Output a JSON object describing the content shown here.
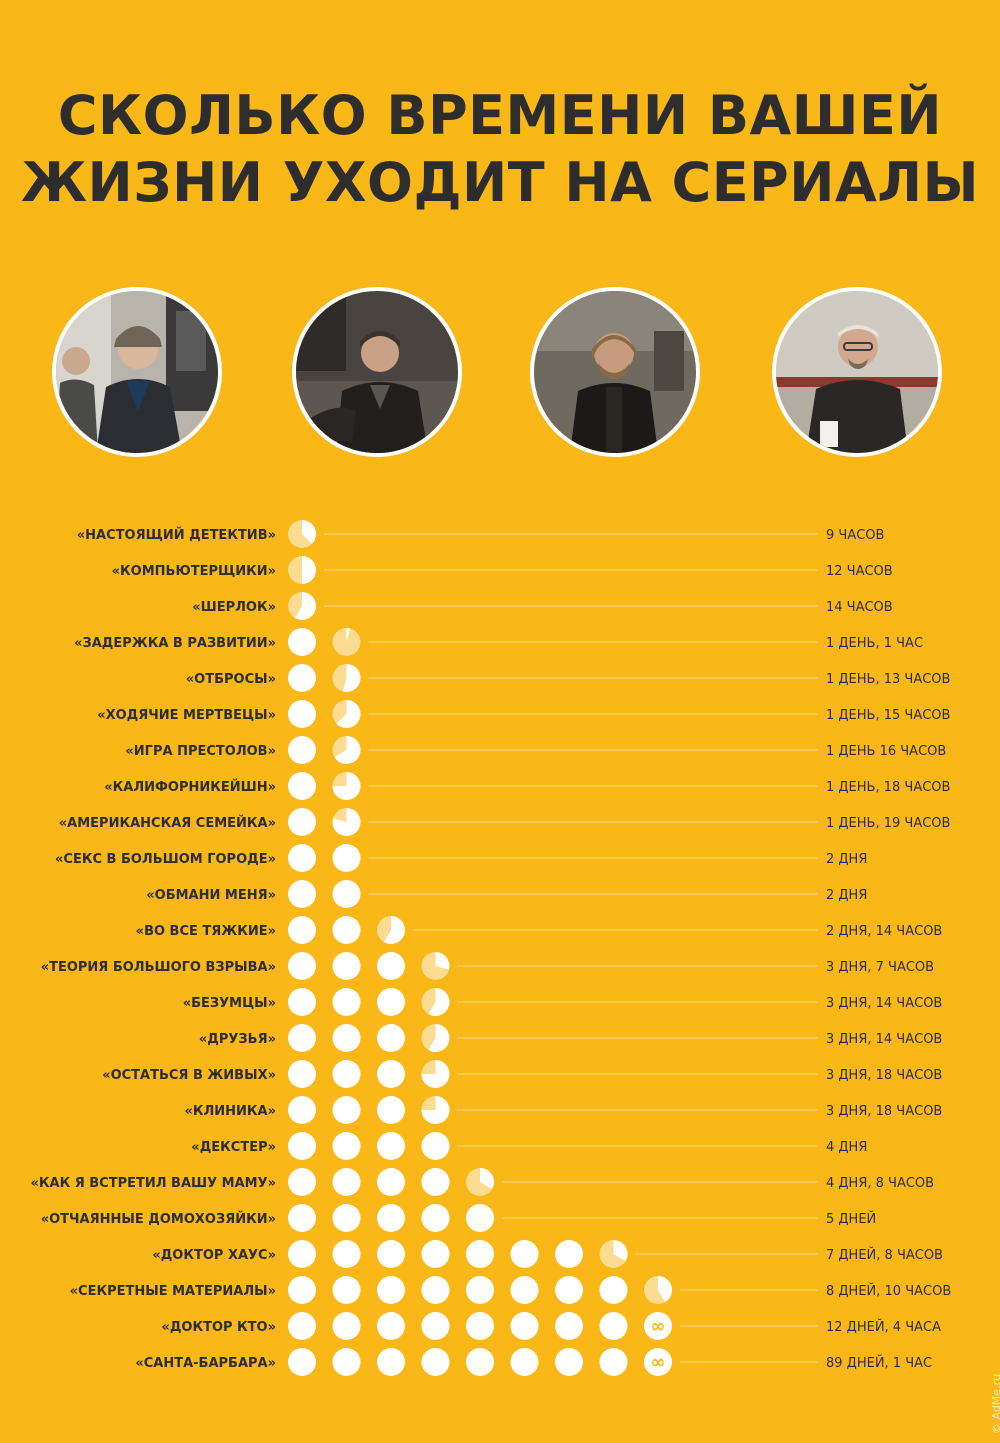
{
  "title": {
    "line1": "СКОЛЬКО ВРЕМЕНИ ВАШЕЙ",
    "line2": "ЖИЗНИ УХОДИТ НА СЕРИАЛЫ"
  },
  "watermark": "© AdMe.ru",
  "portraits": [
    {
      "name": "sherlock-portrait"
    },
    {
      "name": "house-portrait"
    },
    {
      "name": "tyrion-portrait"
    },
    {
      "name": "walter-portrait"
    }
  ],
  "colors": {
    "background": "#f9b818",
    "dot": "#ffffff",
    "partial_fill": "#fbdc90",
    "text": "#2d2d2d"
  },
  "chart_data": {
    "type": "bar",
    "unit_note": "each circle = 1 day; partial circle = fraction of a day",
    "categories": [
      "«НАСТОЯЩИЙ ДЕТЕКТИВ»",
      "«КОМПЬЮТЕРЩИКИ»",
      "«ШЕРЛОК»",
      "«ЗАДЕРЖКА В РАЗВИТИИ»",
      "«ОТБРОСЫ»",
      "«ХОДЯЧИЕ МЕРТВЕЦЫ»",
      "«ИГРА ПРЕСТОЛОВ»",
      "«КАЛИФОРНИКЕЙШН»",
      "«АМЕРИКАНСКАЯ СЕМЕЙКА»",
      "«СЕКС В БОЛЬШОМ ГОРОДЕ»",
      "«ОБМАНИ МЕНЯ»",
      "«ВО ВСЕ ТЯЖКИЕ»",
      "«ТЕОРИЯ БОЛЬШОГО ВЗРЫВА»",
      "«БЕЗУМЦЫ»",
      "«ДРУЗЬЯ»",
      "«ОСТАТЬСЯ В ЖИВЫХ»",
      "«КЛИНИКА»",
      "«ДЕКСТЕР»",
      "«КАК Я ВСТРЕТИЛ ВАШУ МАМУ»",
      "«ОТЧАЯННЫЕ ДОМОХОЗЯЙКИ»",
      "«ДОКТОР ХАУС»",
      "«СЕКРЕТНЫЕ МАТЕРИАЛЫ»",
      "«ДОКТОР КТО»",
      "«САНТА-БАРБАРА»"
    ],
    "value_labels": [
      "9 ЧАСОВ",
      "12 ЧАСОВ",
      "14 ЧАСОВ",
      "1 ДЕНЬ, 1 ЧАС",
      "1 ДЕНЬ, 13 ЧАСОВ",
      "1 ДЕНЬ, 15 ЧАСОВ",
      "1 ДЕНЬ 16 ЧАСОВ",
      "1 ДЕНЬ, 18 ЧАСОВ",
      "1 ДЕНЬ, 19 ЧАСОВ",
      "2 ДНЯ",
      "2 ДНЯ",
      "2 ДНЯ, 14 ЧАСОВ",
      "3 ДНЯ, 7 ЧАСОВ",
      "3 ДНЯ, 14 ЧАСОВ",
      "3 ДНЯ, 14 ЧАСОВ",
      "3 ДНЯ, 18 ЧАСОВ",
      "3 ДНЯ, 18 ЧАСОВ",
      "4 ДНЯ",
      "4 ДНЯ, 8 ЧАСОВ",
      "5 ДНЕЙ",
      "7 ДНЕЙ, 8 ЧАСОВ",
      "8 ДНЕЙ, 10 ЧАСОВ",
      "12 ДНЕЙ, 4 ЧАСА",
      "89 ДНЕЙ, 1 ЧАС"
    ],
    "values_hours": [
      9,
      12,
      14,
      25,
      37,
      39,
      40,
      42,
      43,
      48,
      48,
      62,
      79,
      86,
      86,
      90,
      90,
      96,
      104,
      120,
      176,
      202,
      292,
      2137
    ],
    "max_circles": 9,
    "overflow_symbol": "∞"
  }
}
